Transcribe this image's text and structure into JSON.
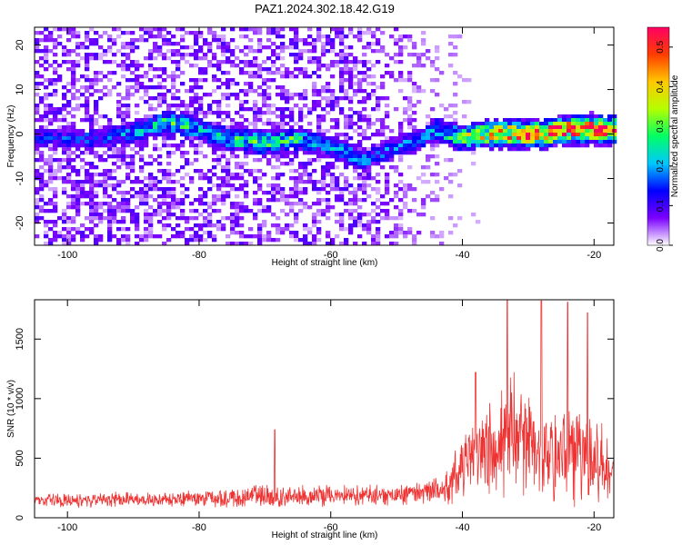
{
  "title": "PAZ1.2024.302.18.42.G19",
  "chart_data": [
    {
      "type": "heatmap",
      "xlabel": "Height of straight line (km)",
      "ylabel": "Frequency (Hz)",
      "xlim": [
        -105,
        -17
      ],
      "ylim": [
        -25,
        24
      ],
      "x_ticks": [
        -100,
        -80,
        -60,
        -40,
        -20
      ],
      "y_ticks": [
        -20,
        -10,
        0,
        10,
        20
      ],
      "colorbar": {
        "label": "Normalized spectral amplitude",
        "range": [
          0,
          0.55
        ],
        "ticks": [
          "0.0",
          "0.1",
          "0.2",
          "0.3",
          "0.4",
          "0.5"
        ],
        "colors": [
          "#ffffff",
          "#7b00ff",
          "#0000ff",
          "#00c8ff",
          "#00ff64",
          "#b4ff00",
          "#ffc800",
          "#ff3c00",
          "#ff0064"
        ]
      },
      "ridge": {
        "x": [
          -104,
          -95,
          -88,
          -85,
          -80,
          -76,
          -70,
          -66,
          -62,
          -58,
          -55,
          -50,
          -46,
          -44,
          -40,
          -36,
          -32,
          -28,
          -24,
          -20,
          -17
        ],
        "y": [
          -1,
          -1,
          1,
          3,
          1,
          -1,
          -2,
          -1,
          -2,
          -4,
          -6,
          -3,
          -1,
          1,
          -1,
          0,
          0,
          0,
          1,
          1,
          1
        ],
        "amplitude": [
          0.12,
          0.14,
          0.18,
          0.25,
          0.2,
          0.22,
          0.24,
          0.24,
          0.16,
          0.18,
          0.16,
          0.15,
          0.16,
          0.2,
          0.3,
          0.38,
          0.45,
          0.5,
          0.48,
          0.5,
          0.42
        ]
      }
    },
    {
      "type": "line",
      "xlabel": "Height of straight line (km)",
      "ylabel": "SNR (10 * v/v)",
      "xlim": [
        -105,
        -17
      ],
      "ylim": [
        0,
        1830
      ],
      "x_ticks": [
        -100,
        -80,
        -60,
        -40,
        -20
      ],
      "y_ticks": [
        0,
        500,
        1000,
        1500
      ],
      "color": "#ee3333",
      "envelope": {
        "x": [
          -105,
          -90,
          -80,
          -70,
          -60,
          -50,
          -45,
          -42,
          -40,
          -38,
          -35,
          -33,
          -30,
          -28,
          -26,
          -24,
          -22,
          -20,
          -18,
          -17
        ],
        "mean": [
          150,
          150,
          160,
          180,
          185,
          190,
          210,
          260,
          450,
          520,
          600,
          650,
          620,
          560,
          590,
          570,
          550,
          480,
          420,
          380
        ],
        "spread": [
          70,
          70,
          80,
          110,
          100,
          100,
          130,
          180,
          330,
          400,
          520,
          600,
          560,
          500,
          560,
          500,
          480,
          420,
          350,
          300
        ]
      },
      "peaks": [
        {
          "x": -68.5,
          "y": 740
        },
        {
          "x": -33.2,
          "y": 1830
        },
        {
          "x": -28.0,
          "y": 1820
        },
        {
          "x": -24.0,
          "y": 1810
        },
        {
          "x": -21.0,
          "y": 1720
        },
        {
          "x": -38.0,
          "y": 1220
        }
      ]
    }
  ]
}
